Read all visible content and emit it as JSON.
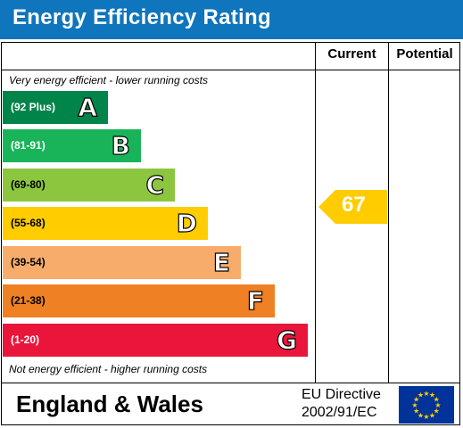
{
  "header": {
    "title": "Energy Efficiency Rating"
  },
  "columns": {
    "current": "Current",
    "potential": "Potential"
  },
  "notes": {
    "top": "Very energy efficient - lower running costs",
    "bottom": "Not energy efficient - higher running costs"
  },
  "bands": [
    {
      "range": "(92 Plus)",
      "letter": "A",
      "color": "#00844a"
    },
    {
      "range": "(81-91)",
      "letter": "B",
      "color": "#19b459"
    },
    {
      "range": "(69-80)",
      "letter": "C",
      "color": "#8cc63f"
    },
    {
      "range": "(55-68)",
      "letter": "D",
      "color": "#ffcc00"
    },
    {
      "range": "(39-54)",
      "letter": "E",
      "color": "#f7ac6b"
    },
    {
      "range": "(21-38)",
      "letter": "F",
      "color": "#ef8023"
    },
    {
      "range": "(1-20)",
      "letter": "G",
      "color": "#e9153b"
    }
  ],
  "current_rating": {
    "value": "67",
    "color": "#ffcc00"
  },
  "footer": {
    "region": "England & Wales",
    "directive_line1": "EU Directive",
    "directive_line2": "2002/91/EC",
    "flag_icon": "eu-flag-icon"
  }
}
